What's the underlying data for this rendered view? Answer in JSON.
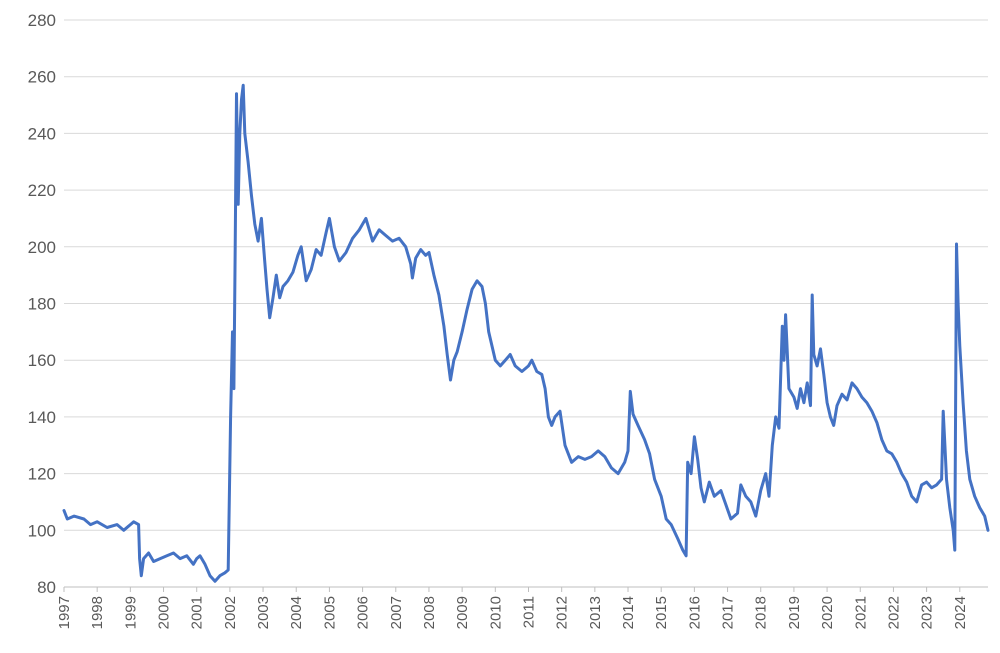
{
  "chart_data": {
    "type": "line",
    "title": "",
    "xlabel": "",
    "ylabel": "",
    "xlim": [
      1997,
      2024.85
    ],
    "ylim": [
      80,
      280
    ],
    "y_ticks": [
      80,
      100,
      120,
      140,
      160,
      180,
      200,
      220,
      240,
      260,
      280
    ],
    "x_tick_labels": [
      "1997",
      "1998",
      "1999",
      "2000",
      "2001",
      "2002",
      "2003",
      "2004",
      "2005",
      "2006",
      "2007",
      "2008",
      "2009",
      "2010",
      "2011",
      "2012",
      "2013",
      "2014",
      "2015",
      "2016",
      "2017",
      "2018",
      "2019",
      "2020",
      "2021",
      "2022",
      "2023",
      "2024"
    ],
    "grid": "horizontal",
    "legend": "none",
    "colors": {
      "series": "#4472c4",
      "grid": "#d9d9d9",
      "text": "#595959"
    },
    "series": [
      {
        "name": "",
        "points": [
          [
            1997.0,
            107
          ],
          [
            1997.1,
            104
          ],
          [
            1997.3,
            105
          ],
          [
            1997.6,
            104
          ],
          [
            1997.8,
            102
          ],
          [
            1998.0,
            103
          ],
          [
            1998.3,
            101
          ],
          [
            1998.6,
            102
          ],
          [
            1998.8,
            100
          ],
          [
            1999.0,
            102
          ],
          [
            1999.1,
            103
          ],
          [
            1999.25,
            102
          ],
          [
            1999.28,
            90
          ],
          [
            1999.33,
            84
          ],
          [
            1999.4,
            90
          ],
          [
            1999.55,
            92
          ],
          [
            1999.7,
            89
          ],
          [
            1999.9,
            90
          ],
          [
            2000.1,
            91
          ],
          [
            2000.3,
            92
          ],
          [
            2000.5,
            90
          ],
          [
            2000.7,
            91
          ],
          [
            2000.9,
            88
          ],
          [
            2001.0,
            90
          ],
          [
            2001.1,
            91
          ],
          [
            2001.25,
            88
          ],
          [
            2001.4,
            84
          ],
          [
            2001.55,
            82
          ],
          [
            2001.7,
            84
          ],
          [
            2001.85,
            85
          ],
          [
            2001.95,
            86
          ],
          [
            2002.02,
            140
          ],
          [
            2002.08,
            170
          ],
          [
            2002.12,
            150
          ],
          [
            2002.16,
            200
          ],
          [
            2002.2,
            254
          ],
          [
            2002.25,
            215
          ],
          [
            2002.3,
            240
          ],
          [
            2002.35,
            252
          ],
          [
            2002.4,
            257
          ],
          [
            2002.45,
            240
          ],
          [
            2002.55,
            230
          ],
          [
            2002.65,
            218
          ],
          [
            2002.75,
            208
          ],
          [
            2002.85,
            202
          ],
          [
            2002.95,
            210
          ],
          [
            2003.05,
            195
          ],
          [
            2003.12,
            185
          ],
          [
            2003.2,
            175
          ],
          [
            2003.3,
            182
          ],
          [
            2003.4,
            190
          ],
          [
            2003.5,
            182
          ],
          [
            2003.6,
            186
          ],
          [
            2003.75,
            188
          ],
          [
            2003.9,
            191
          ],
          [
            2004.05,
            197
          ],
          [
            2004.15,
            200
          ],
          [
            2004.3,
            188
          ],
          [
            2004.45,
            192
          ],
          [
            2004.6,
            199
          ],
          [
            2004.75,
            197
          ],
          [
            2004.9,
            205
          ],
          [
            2005.0,
            210
          ],
          [
            2005.15,
            200
          ],
          [
            2005.3,
            195
          ],
          [
            2005.5,
            198
          ],
          [
            2005.7,
            203
          ],
          [
            2005.9,
            206
          ],
          [
            2006.1,
            210
          ],
          [
            2006.3,
            202
          ],
          [
            2006.5,
            206
          ],
          [
            2006.7,
            204
          ],
          [
            2006.9,
            202
          ],
          [
            2007.1,
            203
          ],
          [
            2007.3,
            200
          ],
          [
            2007.45,
            194
          ],
          [
            2007.5,
            189
          ],
          [
            2007.6,
            196
          ],
          [
            2007.75,
            199
          ],
          [
            2007.9,
            197
          ],
          [
            2008.0,
            198
          ],
          [
            2008.15,
            190
          ],
          [
            2008.3,
            183
          ],
          [
            2008.45,
            172
          ],
          [
            2008.55,
            162
          ],
          [
            2008.65,
            153
          ],
          [
            2008.75,
            160
          ],
          [
            2008.85,
            163
          ],
          [
            2009.0,
            170
          ],
          [
            2009.15,
            178
          ],
          [
            2009.3,
            185
          ],
          [
            2009.45,
            188
          ],
          [
            2009.6,
            186
          ],
          [
            2009.7,
            180
          ],
          [
            2009.8,
            170
          ],
          [
            2009.9,
            165
          ],
          [
            2010.0,
            160
          ],
          [
            2010.15,
            158
          ],
          [
            2010.3,
            160
          ],
          [
            2010.45,
            162
          ],
          [
            2010.6,
            158
          ],
          [
            2010.8,
            156
          ],
          [
            2011.0,
            158
          ],
          [
            2011.1,
            160
          ],
          [
            2011.25,
            156
          ],
          [
            2011.4,
            155
          ],
          [
            2011.5,
            150
          ],
          [
            2011.6,
            140
          ],
          [
            2011.7,
            137
          ],
          [
            2011.8,
            140
          ],
          [
            2011.95,
            142
          ],
          [
            2012.1,
            130
          ],
          [
            2012.3,
            124
          ],
          [
            2012.5,
            126
          ],
          [
            2012.7,
            125
          ],
          [
            2012.9,
            126
          ],
          [
            2013.1,
            128
          ],
          [
            2013.3,
            126
          ],
          [
            2013.5,
            122
          ],
          [
            2013.7,
            120
          ],
          [
            2013.9,
            124
          ],
          [
            2014.0,
            128
          ],
          [
            2014.07,
            149
          ],
          [
            2014.15,
            141
          ],
          [
            2014.3,
            137
          ],
          [
            2014.5,
            132
          ],
          [
            2014.65,
            127
          ],
          [
            2014.8,
            118
          ],
          [
            2015.0,
            112
          ],
          [
            2015.15,
            104
          ],
          [
            2015.3,
            102
          ],
          [
            2015.5,
            97
          ],
          [
            2015.65,
            93
          ],
          [
            2015.75,
            91
          ],
          [
            2015.8,
            124
          ],
          [
            2015.9,
            120
          ],
          [
            2016.0,
            133
          ],
          [
            2016.1,
            125
          ],
          [
            2016.2,
            115
          ],
          [
            2016.3,
            110
          ],
          [
            2016.45,
            117
          ],
          [
            2016.6,
            112
          ],
          [
            2016.8,
            114
          ],
          [
            2016.95,
            109
          ],
          [
            2017.1,
            104
          ],
          [
            2017.3,
            106
          ],
          [
            2017.4,
            116
          ],
          [
            2017.55,
            112
          ],
          [
            2017.7,
            110
          ],
          [
            2017.85,
            105
          ],
          [
            2018.0,
            114
          ],
          [
            2018.15,
            120
          ],
          [
            2018.25,
            112
          ],
          [
            2018.35,
            130
          ],
          [
            2018.45,
            140
          ],
          [
            2018.55,
            136
          ],
          [
            2018.65,
            172
          ],
          [
            2018.7,
            160
          ],
          [
            2018.75,
            176
          ],
          [
            2018.85,
            150
          ],
          [
            2019.0,
            147
          ],
          [
            2019.1,
            143
          ],
          [
            2019.2,
            150
          ],
          [
            2019.3,
            145
          ],
          [
            2019.4,
            152
          ],
          [
            2019.5,
            144
          ],
          [
            2019.55,
            183
          ],
          [
            2019.6,
            162
          ],
          [
            2019.7,
            158
          ],
          [
            2019.8,
            164
          ],
          [
            2019.9,
            155
          ],
          [
            2020.0,
            145
          ],
          [
            2020.1,
            140
          ],
          [
            2020.2,
            137
          ],
          [
            2020.3,
            144
          ],
          [
            2020.45,
            148
          ],
          [
            2020.6,
            146
          ],
          [
            2020.75,
            152
          ],
          [
            2020.9,
            150
          ],
          [
            2021.05,
            147
          ],
          [
            2021.2,
            145
          ],
          [
            2021.35,
            142
          ],
          [
            2021.5,
            138
          ],
          [
            2021.65,
            132
          ],
          [
            2021.8,
            128
          ],
          [
            2021.95,
            127
          ],
          [
            2022.1,
            124
          ],
          [
            2022.25,
            120
          ],
          [
            2022.4,
            117
          ],
          [
            2022.55,
            112
          ],
          [
            2022.7,
            110
          ],
          [
            2022.85,
            116
          ],
          [
            2023.0,
            117
          ],
          [
            2023.15,
            115
          ],
          [
            2023.3,
            116
          ],
          [
            2023.45,
            118
          ],
          [
            2023.5,
            142
          ],
          [
            2023.55,
            130
          ],
          [
            2023.6,
            118
          ],
          [
            2023.7,
            108
          ],
          [
            2023.8,
            100
          ],
          [
            2023.85,
            93
          ],
          [
            2023.9,
            201
          ],
          [
            2023.95,
            180
          ],
          [
            2024.0,
            165
          ],
          [
            2024.1,
            145
          ],
          [
            2024.2,
            128
          ],
          [
            2024.3,
            118
          ],
          [
            2024.45,
            112
          ],
          [
            2024.6,
            108
          ],
          [
            2024.75,
            105
          ],
          [
            2024.85,
            100
          ]
        ]
      }
    ]
  }
}
